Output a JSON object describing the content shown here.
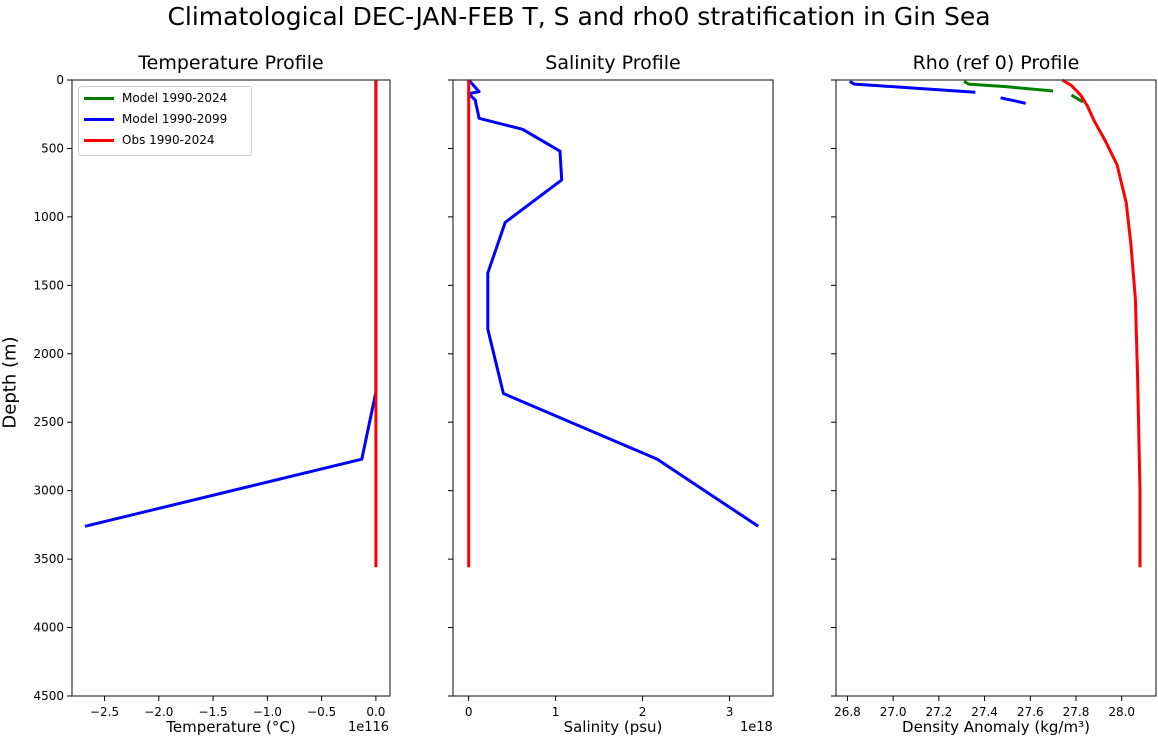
{
  "figure": {
    "suptitle": "Climatological DEC-JAN-FEB T, S and rho0 stratification in Gin Sea",
    "ylabel": "Depth (m)"
  },
  "panels": [
    {
      "title": "Temperature Profile",
      "xlabel": "Temperature (°C)",
      "offset": "1e116"
    },
    {
      "title": "Salinity Profile",
      "xlabel": "Salinity (psu)",
      "offset": "1e18"
    },
    {
      "title": "Rho (ref 0) Profile",
      "xlabel": "Density Anomaly (kg/m³)",
      "offset": ""
    }
  ],
  "legend": {
    "items": [
      {
        "label": "Model 1990-2024",
        "color": "#008000"
      },
      {
        "label": "Model 1990-2099",
        "color": "#0000ff"
      },
      {
        "label": "Obs 1990-2024",
        "color": "#ff0000"
      }
    ]
  },
  "chart_data": [
    {
      "type": "line",
      "title": "Temperature Profile",
      "xlabel": "Temperature (°C)",
      "ylabel": "Depth (m)",
      "x_scale_offset": "1e116",
      "xlim": [
        -2.8,
        0.13
      ],
      "ylim": [
        4500,
        0
      ],
      "xticks": [
        -2.5,
        -2.0,
        -1.5,
        -1.0,
        -0.5,
        0.0
      ],
      "yticks": [
        0,
        500,
        1000,
        1500,
        2000,
        2500,
        3000,
        3500,
        4000,
        4500
      ],
      "series": [
        {
          "name": "Model 1990-2099",
          "color": "#0000ff",
          "x": [
            0.0,
            0.0,
            0.0,
            0.0,
            -0.13,
            -2.68
          ],
          "y": [
            0,
            500,
            1000,
            2280,
            2770,
            3260
          ]
        },
        {
          "name": "Obs 1990-2024",
          "color": "#ff0000",
          "x": [
            0.0,
            0.0
          ],
          "y": [
            0,
            3560
          ]
        }
      ]
    },
    {
      "type": "line",
      "title": "Salinity Profile",
      "xlabel": "Salinity (psu)",
      "ylabel": "Depth (m)",
      "x_scale_offset": "1e18",
      "xlim": [
        -0.18,
        3.5
      ],
      "ylim": [
        4500,
        0
      ],
      "xticks": [
        0,
        1,
        2,
        3
      ],
      "yticks": [
        0,
        500,
        1000,
        1500,
        2000,
        2500,
        3000,
        3500,
        4000,
        4500
      ],
      "series": [
        {
          "name": "Model 1990-2099",
          "color": "#0000ff",
          "x": [
            0.0,
            0.12,
            0.0,
            0.08,
            0.08,
            0.12,
            0.62,
            1.05,
            1.07,
            0.42,
            0.22,
            0.22,
            0.4,
            2.17,
            3.33
          ],
          "y": [
            0,
            85,
            100,
            150,
            160,
            280,
            360,
            520,
            730,
            1040,
            1410,
            1820,
            2290,
            2770,
            3260
          ]
        },
        {
          "name": "Obs 1990-2024",
          "color": "#ff0000",
          "x": [
            0.0,
            0.0
          ],
          "y": [
            0,
            3560
          ]
        }
      ]
    },
    {
      "type": "line",
      "title": "Rho (ref 0) Profile",
      "xlabel": "Density Anomaly (kg/m³)",
      "ylabel": "Depth (m)",
      "xlim": [
        26.75,
        28.15
      ],
      "ylim": [
        4500,
        0
      ],
      "xticks": [
        26.8,
        27.0,
        27.2,
        27.4,
        27.6,
        27.8,
        28.0
      ],
      "yticks": [
        0,
        500,
        1000,
        1500,
        2000,
        2500,
        3000,
        3500,
        4000,
        4500
      ],
      "series": [
        {
          "name": "Model 1990-2024",
          "color": "#008000",
          "segments": [
            {
              "x": [
                27.31,
                27.33,
                27.5,
                27.7
              ],
              "y": [
                10,
                30,
                50,
                80
              ]
            },
            {
              "x": [
                27.78,
                27.83
              ],
              "y": [
                110,
                160
              ]
            }
          ]
        },
        {
          "name": "Model 1990-2099",
          "color": "#0000ff",
          "segments": [
            {
              "x": [
                26.81,
                26.83,
                27.1,
                27.36
              ],
              "y": [
                10,
                30,
                60,
                90
              ]
            },
            {
              "x": [
                27.47,
                27.58
              ],
              "y": [
                130,
                170
              ]
            }
          ]
        },
        {
          "name": "Obs 1990-2024",
          "color": "#ff0000",
          "x": [
            27.74,
            27.78,
            27.82,
            27.85,
            27.88,
            27.93,
            27.98,
            28.02,
            28.04,
            28.06,
            28.07,
            28.08,
            28.08
          ],
          "y": [
            0,
            40,
            110,
            190,
            300,
            450,
            620,
            900,
            1200,
            1600,
            2200,
            3000,
            3560
          ]
        }
      ]
    }
  ]
}
